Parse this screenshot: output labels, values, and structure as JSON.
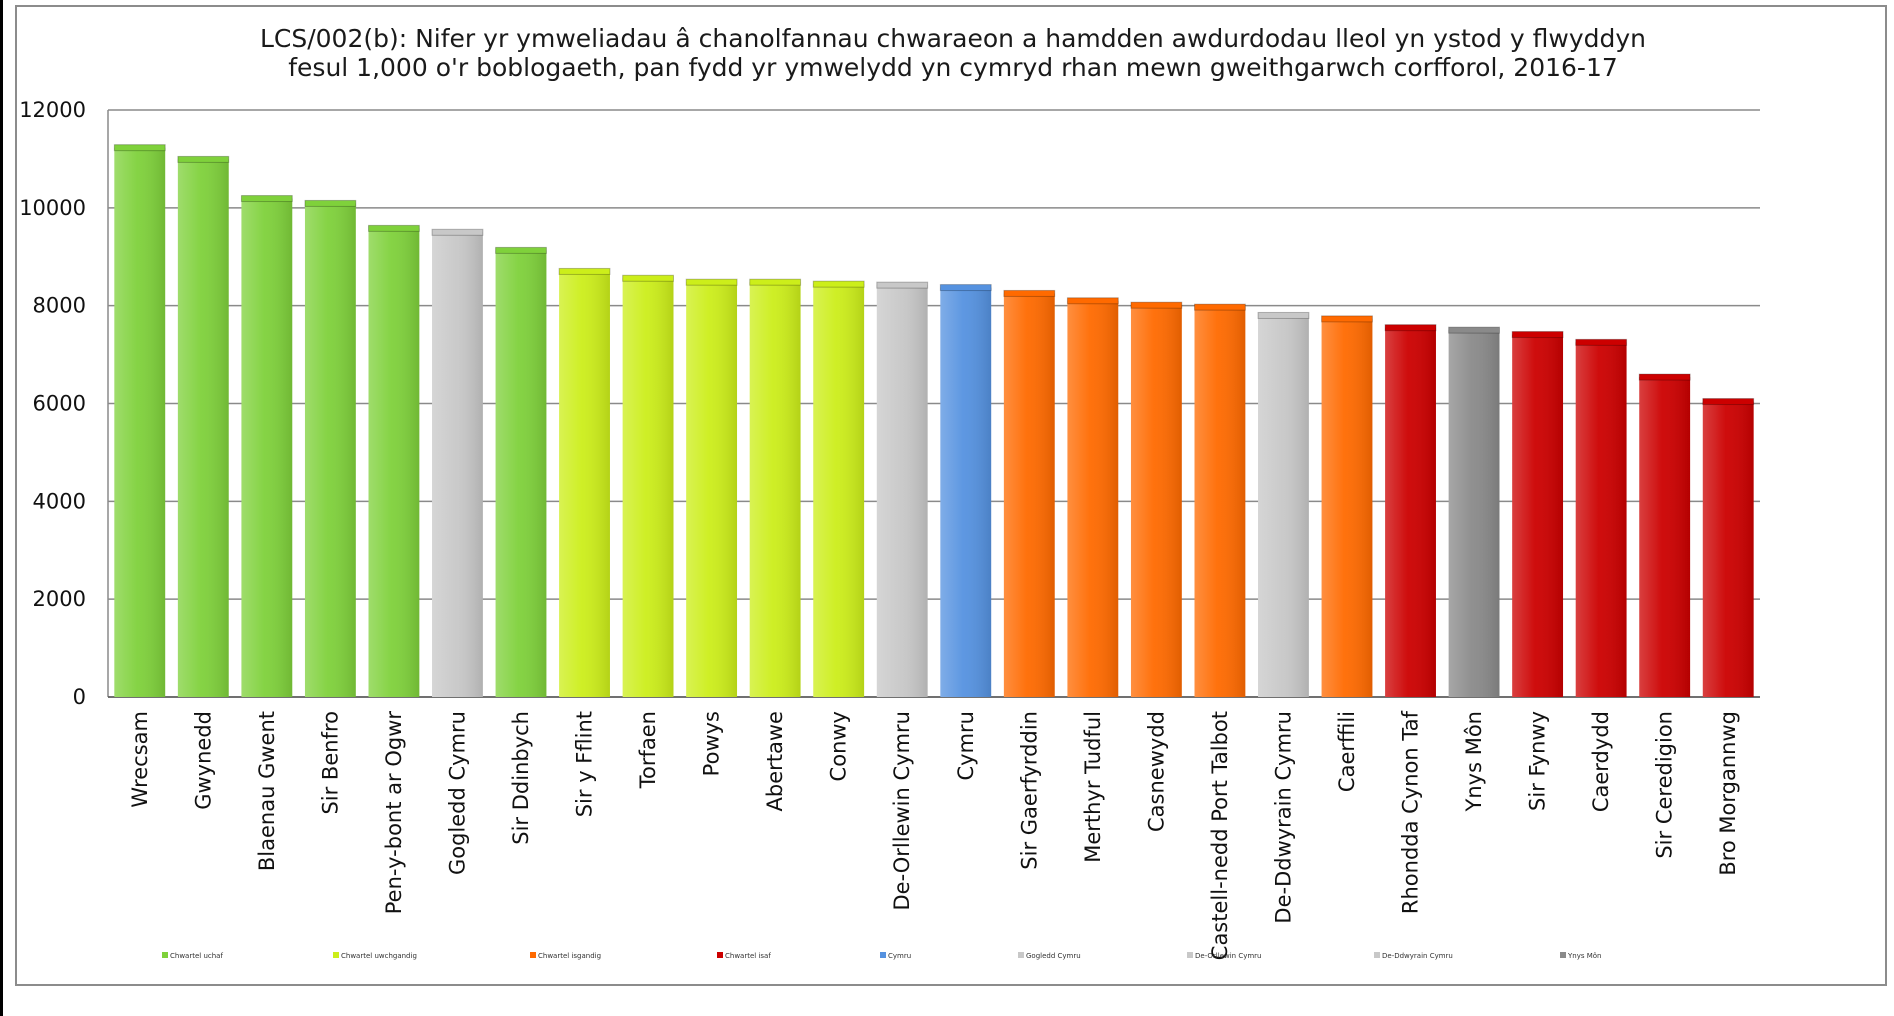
{
  "chart_data": {
    "type": "bar",
    "title": "LCS/002(b): Nifer yr ymweliadau â chanolfannau chwaraeon a hamdden awdurdodau lleol yn ystod y flwyddyn",
    "subtitle": "fesul 1,000 o'r boblogaeth, pan fydd yr ymwelydd yn cymryd rhan mewn gweithgarwch corfforol, 2016-17",
    "xlabel": "",
    "ylabel": "",
    "ylim": [
      0,
      12000
    ],
    "yticks": [
      "0",
      "2000",
      "4000",
      "6000",
      "8000",
      "10000",
      "12000"
    ],
    "grid": true,
    "legend_position": "bottom",
    "categories": [
      "Wrecsam",
      "Gwynedd",
      "Blaenau Gwent",
      "Sir Benfro",
      "Pen-y-bont ar Ogwr",
      "Gogledd Cymru",
      "Sir Ddinbych",
      "Sir y Fflint",
      "Torfaen",
      "Powys",
      "Abertawe",
      "Conwy",
      "De-Orllewin Cymru",
      "Cymru",
      "Sir Gaerfyrddin",
      "Merthyr Tudful",
      "Casnewydd",
      "Castell-nedd Port Talbot",
      "De-Ddwyrain Cymru",
      "Caerffili",
      "Rhondda Cynon Taf",
      "Ynys Môn",
      "Sir Fynwy",
      "Caerdydd",
      "Sir Ceredigion",
      "Bro Morgannwg"
    ],
    "values": [
      11230,
      10990,
      10190,
      10090,
      9580,
      9500,
      9130,
      8700,
      8560,
      8480,
      8480,
      8440,
      8420,
      8370,
      8250,
      8100,
      8010,
      7970,
      7800,
      7730,
      7550,
      7500,
      7410,
      7250,
      6540,
      6040
    ],
    "groups": [
      "top",
      "top",
      "top",
      "top",
      "top",
      "ref",
      "top",
      "upper",
      "upper",
      "upper",
      "upper",
      "upper",
      "ref",
      "wales",
      "lower",
      "lower",
      "lower",
      "lower",
      "ref",
      "lower",
      "bottom",
      "ynys",
      "bottom",
      "bottom",
      "bottom",
      "bottom"
    ],
    "colors": {
      "top": "#7fd13b",
      "upper": "#ccee1a",
      "lower": "#ff6a00",
      "bottom": "#cc0000",
      "wales": "#5592e0",
      "ref": "#c8c8c8",
      "ynys": "#8a8a8a"
    },
    "legend": [
      {
        "label": "Chwartel uchaf",
        "color": "#7fd13b"
      },
      {
        "label": "Chwartel uwchgandig",
        "color": "#ccee1a"
      },
      {
        "label": "Chwartel isgandig",
        "color": "#ff6a00"
      },
      {
        "label": "Chwartel isaf",
        "color": "#cc0000"
      },
      {
        "label": "Cymru",
        "color": "#5592e0"
      },
      {
        "label": "Gogledd Cymru",
        "color": "#c8c8c8"
      },
      {
        "label": "De-Orllewin Cymru",
        "color": "#c8c8c8"
      },
      {
        "label": "De-Ddwyrain Cymru",
        "color": "#c8c8c8"
      },
      {
        "label": "Ynys Môn",
        "color": "#8a8a8a"
      }
    ]
  }
}
